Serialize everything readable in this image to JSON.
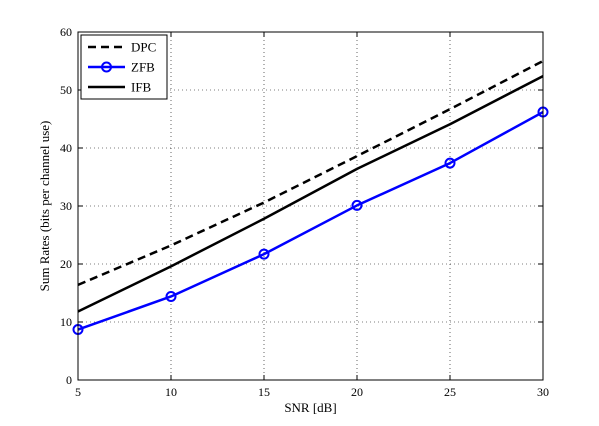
{
  "chart_data": {
    "type": "line",
    "title": "",
    "xlabel": "SNR [dB]",
    "ylabel": "Sum Rates (bits per channel use)",
    "xlim": [
      5,
      30
    ],
    "ylim": [
      0,
      60
    ],
    "xticks": [
      5,
      10,
      15,
      20,
      25,
      30
    ],
    "yticks": [
      0,
      10,
      20,
      30,
      40,
      50,
      60
    ],
    "grid": true,
    "legend_position": "top-left",
    "x": [
      5,
      10,
      15,
      20,
      25,
      30
    ],
    "series": [
      {
        "name": "DPC",
        "values": [
          16.4,
          23.2,
          30.6,
          38.6,
          46.7,
          55.0
        ],
        "style": "dashed",
        "color": "#000000",
        "marker": "none"
      },
      {
        "name": "ZFB",
        "values": [
          8.7,
          14.4,
          21.7,
          30.1,
          37.4,
          46.2
        ],
        "style": "solid",
        "color": "#0000ff",
        "marker": "circle"
      },
      {
        "name": "IFB",
        "values": [
          11.8,
          19.6,
          27.8,
          36.4,
          44.1,
          52.4
        ],
        "style": "solid",
        "color": "#000000",
        "marker": "none"
      }
    ]
  }
}
